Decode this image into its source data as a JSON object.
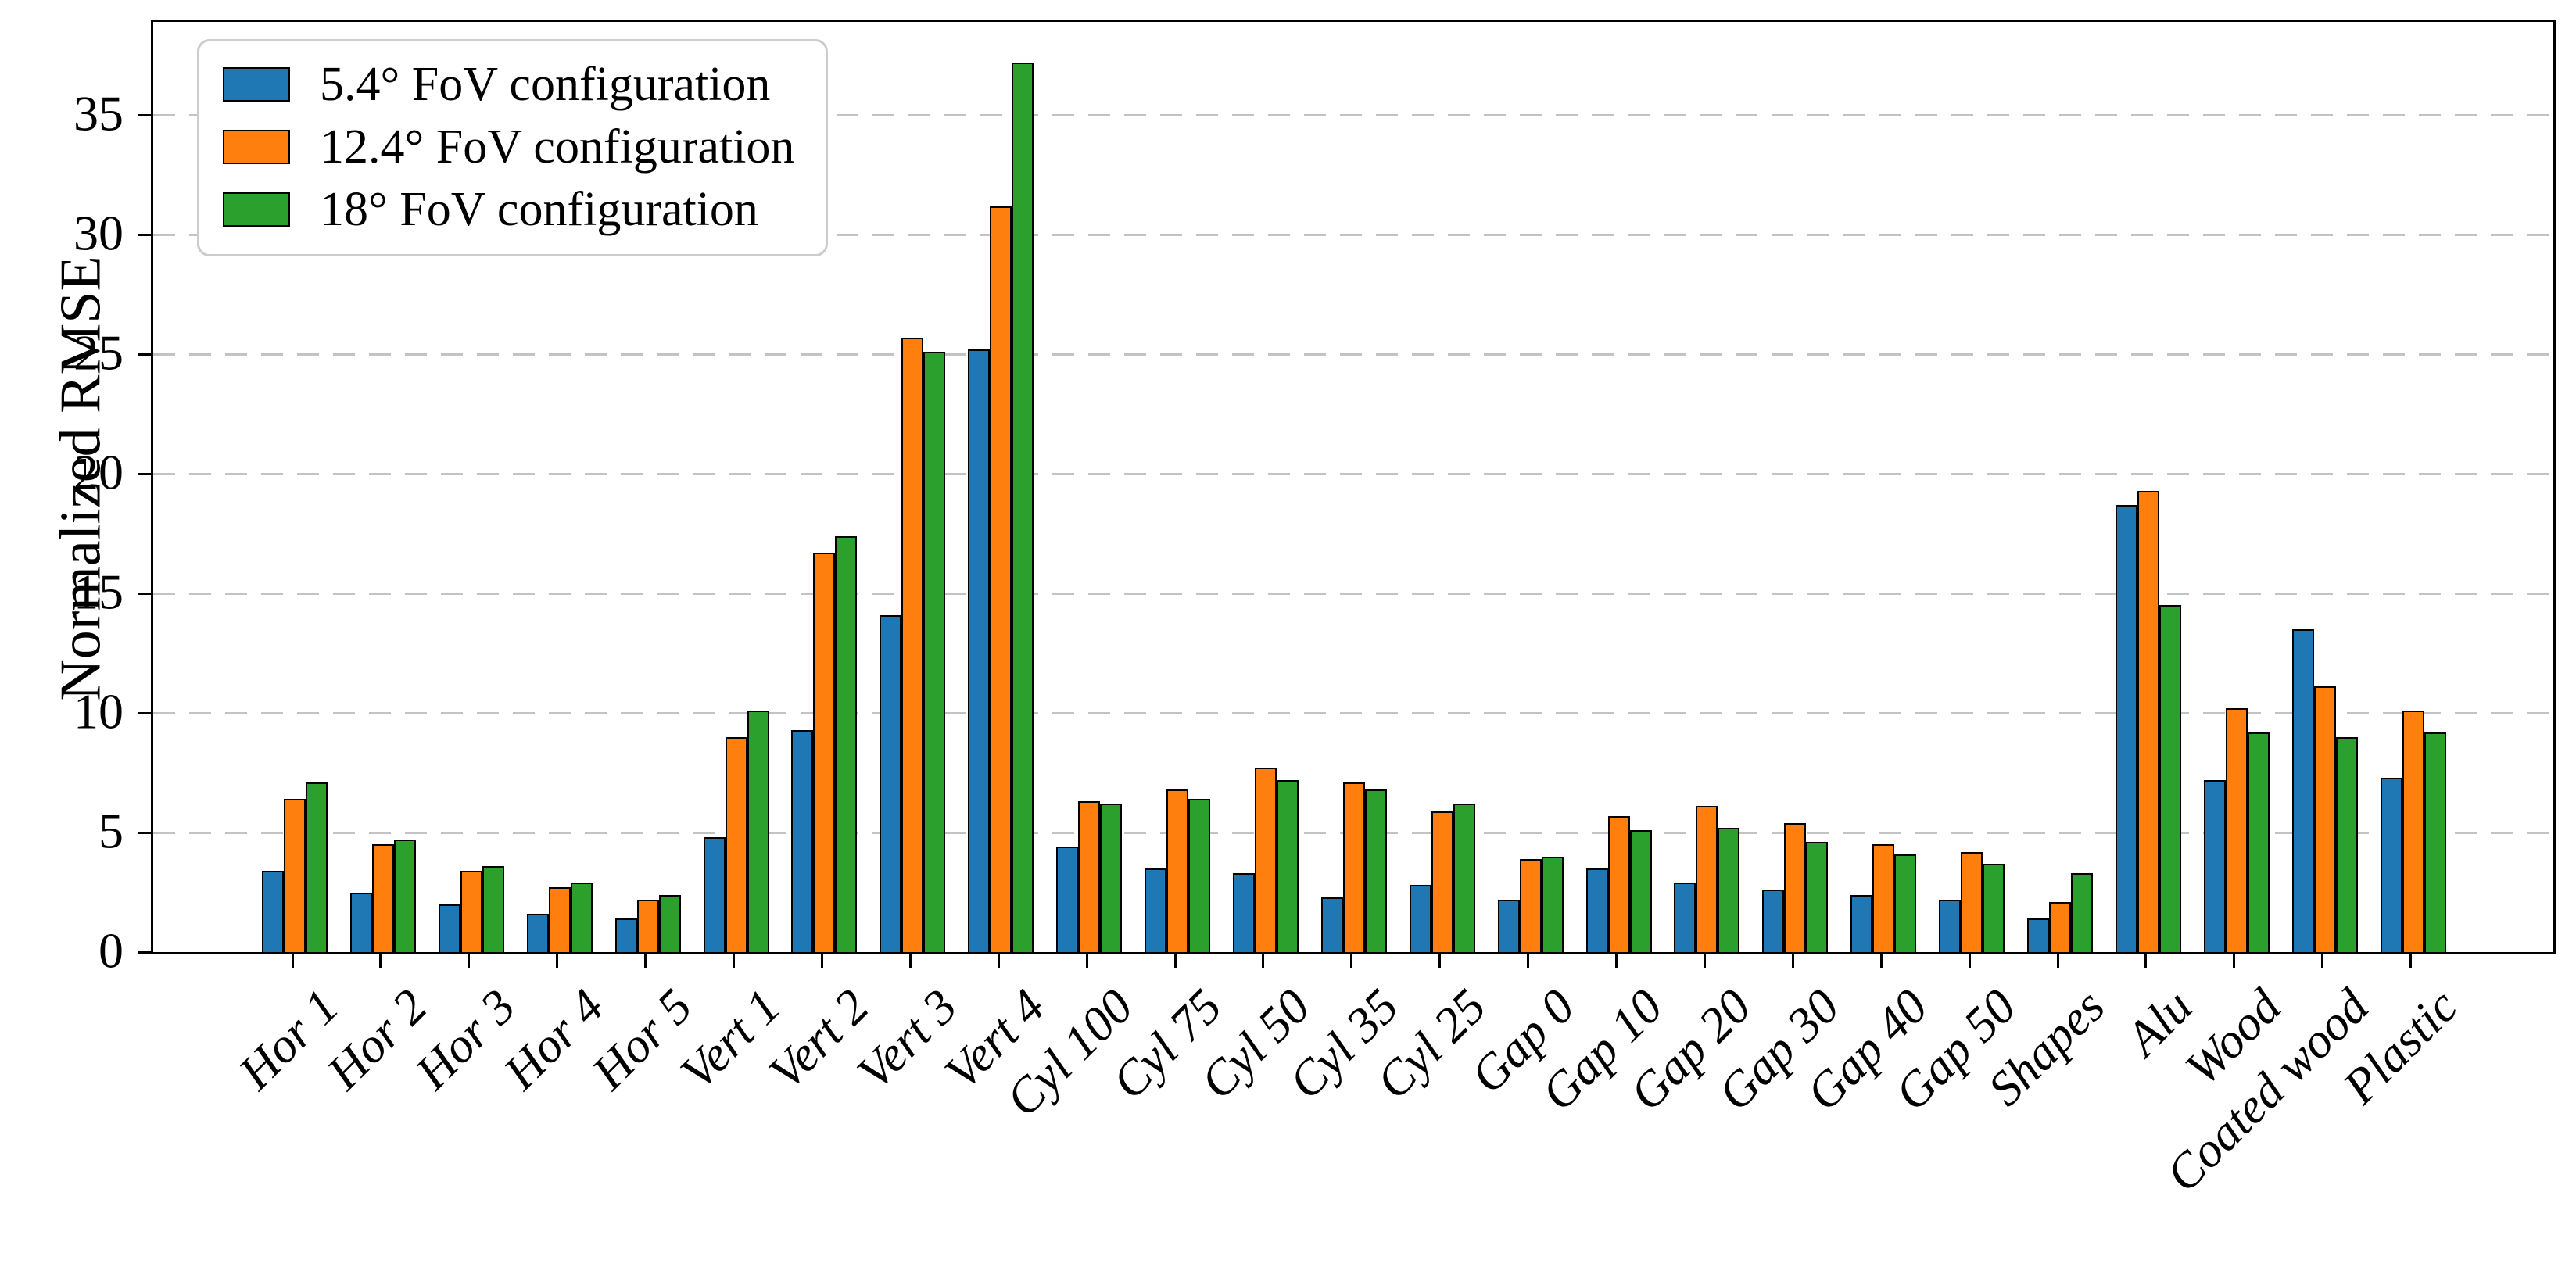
{
  "figure": {
    "background": "#ffffff",
    "plot_border_color": "#000000",
    "grid_color": "#c3c3c3"
  },
  "chart_data": {
    "type": "bar",
    "title": "",
    "xlabel": "",
    "ylabel": "Normalized RMSE",
    "ylim": [
      0,
      38.9
    ],
    "yticks": [
      0,
      5,
      10,
      15,
      20,
      25,
      30,
      35
    ],
    "grid": "horizontal dashed gridlines at multiples of 5",
    "legend_position": "upper-left",
    "bar_edge_color": "#000000",
    "categories": [
      "Hor 1",
      "Hor 2",
      "Hor 3",
      "Hor 4",
      "Hor 5",
      "Vert 1",
      "Vert 2",
      "Vert 3",
      "Vert 4",
      "Cyl 100",
      "Cyl 75",
      "Cyl 50",
      "Cyl 35",
      "Cyl 25",
      "Gap 0",
      "Gap 10",
      "Gap 20",
      "Gap 30",
      "Gap 40",
      "Gap 50",
      "Shapes",
      "Alu",
      "Wood",
      "Coated wood",
      "Plastic"
    ],
    "series": [
      {
        "name": "5.4° FoV configuration",
        "color": "#1f77b4",
        "values": [
          3.4,
          2.5,
          2.0,
          1.6,
          1.4,
          4.8,
          9.3,
          14.1,
          25.2,
          4.4,
          3.5,
          3.3,
          2.3,
          2.8,
          2.2,
          3.5,
          2.9,
          2.6,
          2.4,
          2.2,
          1.4,
          18.7,
          7.2,
          13.5,
          7.3
        ]
      },
      {
        "name": "12.4° FoV configuration",
        "color": "#ff7f0e",
        "values": [
          6.4,
          4.5,
          3.4,
          2.7,
          2.2,
          9.0,
          16.7,
          25.7,
          31.2,
          6.3,
          6.8,
          7.7,
          7.1,
          5.9,
          3.9,
          5.7,
          6.1,
          5.4,
          4.5,
          4.2,
          2.1,
          19.3,
          10.2,
          11.1,
          10.1
        ]
      },
      {
        "name": "18° FoV configuration",
        "color": "#2ca02c",
        "values": [
          7.1,
          4.7,
          3.6,
          2.9,
          2.4,
          10.1,
          17.4,
          25.1,
          37.2,
          6.2,
          6.4,
          7.2,
          6.8,
          6.2,
          4.0,
          5.1,
          5.2,
          4.6,
          4.1,
          3.7,
          3.3,
          14.5,
          9.2,
          9.0,
          9.2
        ]
      }
    ]
  }
}
